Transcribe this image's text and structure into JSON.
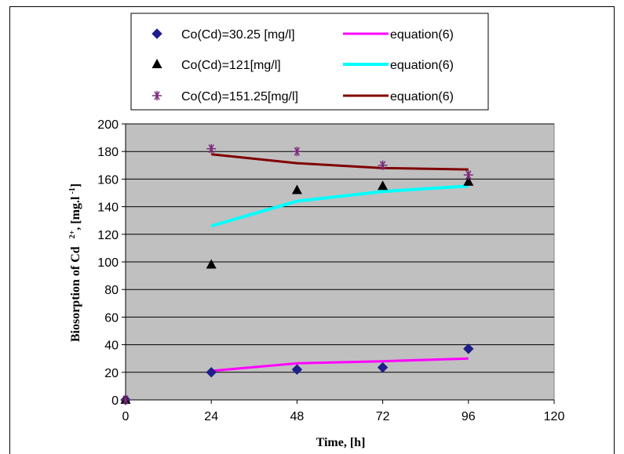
{
  "chart_data": {
    "type": "scatter",
    "xlabel": "Time, [h]",
    "ylabel_main": "Biosorption of Cd",
    "ylabel_sup": "2+",
    "ylabel_unit": ", [mg.l",
    "ylabel_unit_sup": "-1",
    "ylabel_close": "]",
    "xlim": [
      0,
      120
    ],
    "ylim": [
      0,
      200
    ],
    "xticks": [
      0,
      24,
      48,
      72,
      96,
      120
    ],
    "yticks": [
      0,
      20,
      40,
      60,
      80,
      100,
      120,
      140,
      160,
      180,
      200
    ],
    "grid": true,
    "plot_background": "#c0c0c0",
    "legend_position": "top",
    "series": [
      {
        "name": "Co(Cd)=30.25 [mg/l]",
        "kind": "points",
        "marker": "diamond",
        "color": "#1f1f8c",
        "x": [
          0,
          24,
          48,
          72,
          96
        ],
        "y": [
          0,
          20,
          22,
          23.5,
          37
        ]
      },
      {
        "name": "Co(Cd)=121[mg/l]",
        "kind": "points",
        "marker": "triangle",
        "color": "#000000",
        "x": [
          0,
          24,
          48,
          72,
          96
        ],
        "y": [
          0,
          98,
          152,
          155,
          158
        ]
      },
      {
        "name": "Co(Cd)=151.25[mg/l]",
        "kind": "points",
        "marker": "asterisk",
        "color": "#7a2a7a",
        "x": [
          0,
          24,
          48,
          72,
          96
        ],
        "y": [
          0,
          182,
          180,
          170,
          163
        ]
      },
      {
        "name": "equation(6)",
        "kind": "line",
        "color": "#ff00ff",
        "width": 3,
        "x": [
          24,
          48,
          72,
          96
        ],
        "y": [
          21,
          26.5,
          28,
          30
        ]
      },
      {
        "name": "equation(6)",
        "kind": "line",
        "color": "#00ffff",
        "width": 4,
        "x": [
          24,
          48,
          72,
          96
        ],
        "y": [
          126,
          144,
          151,
          155
        ]
      },
      {
        "name": "equation(6)",
        "kind": "line",
        "color": "#800000",
        "width": 3,
        "x": [
          24,
          48,
          72,
          96
        ],
        "y": [
          178,
          171.5,
          168,
          167
        ]
      }
    ]
  }
}
